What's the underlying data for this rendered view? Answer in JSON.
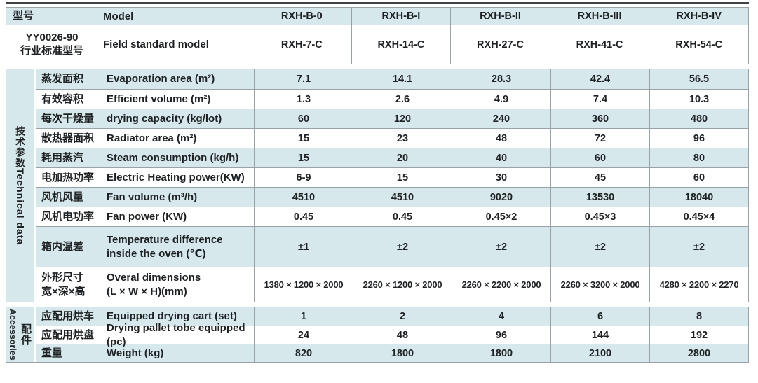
{
  "table": {
    "colors": {
      "stripe_blue": "#d6e8ec",
      "grid_line": "#99a3a7",
      "top_rule": "#3f4245",
      "text": "#1e2123"
    },
    "header": {
      "rows": [
        {
          "zh": "型号",
          "en": "Model",
          "values": [
            "RXH-B-0",
            "RXH-B-I",
            "RXH-B-II",
            "RXH-B-III",
            "RXH-B-IV"
          ],
          "shade": "blue"
        },
        {
          "zh": "YY0026-90\n行业标准型号",
          "en": "Field standard model",
          "values": [
            "RXH-7-C",
            "RXH-14-C",
            "RXH-27-C",
            "RXH-41-C",
            "RXH-54-C"
          ],
          "shade": "white"
        }
      ]
    },
    "sections": [
      {
        "group_zh": "技术参数",
        "group_en": "Technical data",
        "sidebar_style": "inline",
        "rows": [
          {
            "zh": "蒸发面积",
            "en": "Evaporation area (m²)",
            "values": [
              "7.1",
              "14.1",
              "28.3",
              "42.4",
              "56.5"
            ],
            "shade": "blue"
          },
          {
            "zh": "有效容积",
            "en": "Efficient volume (m²)",
            "values": [
              "1.3",
              "2.6",
              "4.9",
              "7.4",
              "10.3"
            ],
            "shade": "white"
          },
          {
            "zh": "每次干燥量",
            "en": "drying capacity (kg/lot)",
            "values": [
              "60",
              "120",
              "240",
              "360",
              "480"
            ],
            "shade": "blue"
          },
          {
            "zh": "散热器面积",
            "en": "Radiator area (m²)",
            "values": [
              "15",
              "23",
              "48",
              "72",
              "96"
            ],
            "shade": "white"
          },
          {
            "zh": "耗用蒸汽",
            "en": "Steam consumption (kg/h)",
            "values": [
              "15",
              "20",
              "40",
              "60",
              "80"
            ],
            "shade": "blue"
          },
          {
            "zh": "电加热功率",
            "en": "Electric Heating power(KW)",
            "values": [
              "6-9",
              "15",
              "30",
              "45",
              "60"
            ],
            "shade": "white"
          },
          {
            "zh": "风机风量",
            "en": "Fan volume (m³/h)",
            "values": [
              "4510",
              "4510",
              "9020",
              "13530",
              "18040"
            ],
            "shade": "blue"
          },
          {
            "zh": "风机电功率",
            "en": "Fan power (KW)",
            "values": [
              "0.45",
              "0.45",
              "0.45×2",
              "0.45×3",
              "0.45×4"
            ],
            "shade": "white"
          },
          {
            "zh": "箱内温差",
            "en": "Temperature difference\ninside the oven (℃)",
            "values": [
              "±1",
              "±2",
              "±2",
              "±2",
              "±2"
            ],
            "shade": "blue",
            "tall": 2
          },
          {
            "zh": "外形尺寸\n宽×深×高",
            "en": "Overal dimensions\n(L × W × H)(mm)",
            "values": [
              "1380 × 1200 × 2000",
              "2260 × 1200 × 2000",
              "2260 × 2200 × 2000",
              "2260 × 3200 × 2000",
              "4280 × 2200 × 2270"
            ],
            "shade": "white",
            "tall": 3,
            "small_values": true
          }
        ]
      },
      {
        "group_zh": "配件",
        "group_en": "Accessories",
        "sidebar_style": "columns",
        "rows": [
          {
            "zh": "应配用烘车",
            "en": "Equipped drying cart (set)",
            "values": [
              "1",
              "2",
              "4",
              "6",
              "8"
            ],
            "shade": "blue"
          },
          {
            "zh": "应配用烘盘",
            "en": "Drying pallet tobe equipped (pc)",
            "values": [
              "24",
              "48",
              "96",
              "144",
              "192"
            ],
            "shade": "white"
          },
          {
            "zh": "重量",
            "en": "Weight (kg)",
            "values": [
              "820",
              "1800",
              "1800",
              "2100",
              "2800"
            ],
            "shade": "blue"
          }
        ]
      }
    ]
  }
}
